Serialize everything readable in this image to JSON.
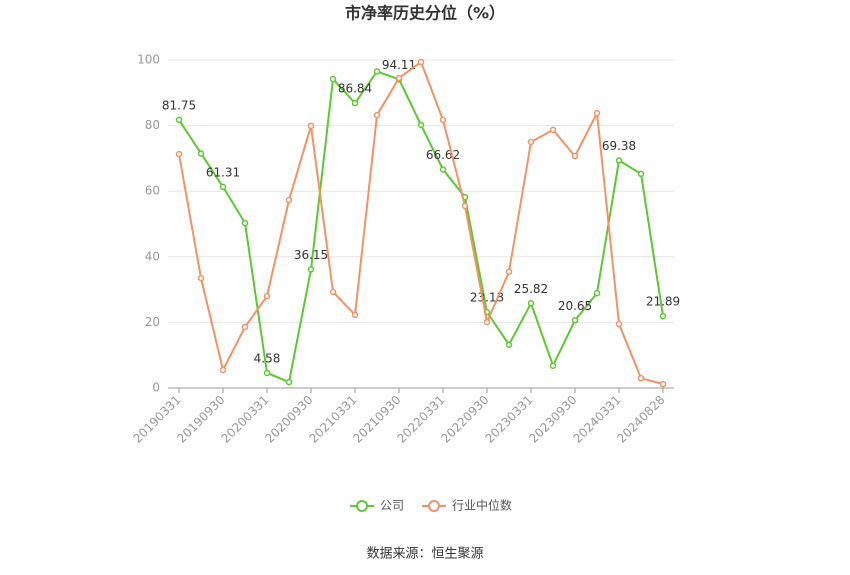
{
  "chart_data": {
    "type": "line",
    "title": "市净率历史分位（%）",
    "categories": [
      "20190331",
      null,
      "20190930",
      null,
      "20200331",
      null,
      "20200930",
      null,
      "20210331",
      null,
      "20210930",
      null,
      "20220331",
      null,
      "20220930",
      null,
      "20230331",
      null,
      "20230930",
      null,
      "20240331",
      null,
      "20240828"
    ],
    "series": [
      {
        "name": "公司",
        "color": "#5dc832",
        "values": [
          81.75,
          71.5,
          61.31,
          50.3,
          4.58,
          1.8,
          36.15,
          94.2,
          86.84,
          96.5,
          94.11,
          80.2,
          66.62,
          58.2,
          23.13,
          13.2,
          25.82,
          6.8,
          20.65,
          28.9,
          69.38,
          65.3,
          21.89
        ],
        "value_labels": [
          "81.75",
          null,
          "61.31",
          null,
          "4.58",
          null,
          "36.15",
          null,
          "86.84",
          null,
          "94.11",
          null,
          "66.62",
          null,
          "23.13",
          null,
          "25.82",
          null,
          "20.65",
          null,
          "69.38",
          null,
          "21.89"
        ]
      },
      {
        "name": "行业中位数",
        "color": "#f29367",
        "values": [
          71.3,
          33.5,
          5.5,
          18.6,
          28.0,
          57.3,
          79.9,
          29.3,
          22.3,
          83.2,
          94.5,
          99.4,
          81.7,
          55.5,
          20.1,
          35.4,
          75.0,
          78.7,
          70.7,
          83.8,
          19.5,
          3.0,
          1.2
        ]
      }
    ],
    "ylim": [
      0,
      100
    ],
    "yticks": [
      0,
      20,
      40,
      60,
      80,
      100
    ],
    "grid": true,
    "legend": "bottom",
    "source": "数据来源：恒生聚源"
  }
}
